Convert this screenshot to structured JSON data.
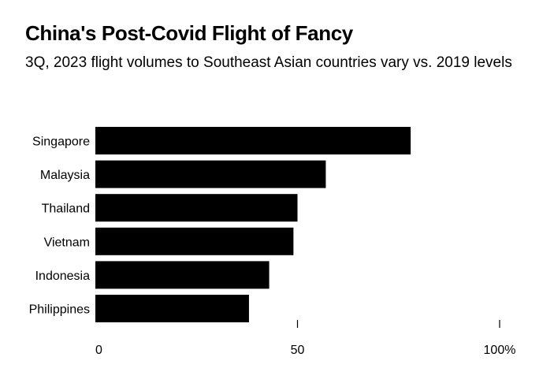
{
  "chart_data": {
    "type": "bar",
    "orientation": "horizontal",
    "title": "China's Post-Covid Flight of Fancy",
    "subtitle": "3Q, 2023 flight volumes to Southeast Asian countries vary vs. 2019 levels",
    "categories": [
      "Singapore",
      "Malaysia",
      "Thailand",
      "Vietnam",
      "Indonesia",
      "Philippines"
    ],
    "values": [
      78,
      57,
      50,
      49,
      43,
      38
    ],
    "xlim": [
      0,
      100
    ],
    "xticks": [
      0,
      50,
      100
    ],
    "xtick_labels": [
      "0",
      "50",
      "100%"
    ],
    "xlabel": "",
    "ylabel": "",
    "bar_color": "#000000",
    "grid": false
  }
}
